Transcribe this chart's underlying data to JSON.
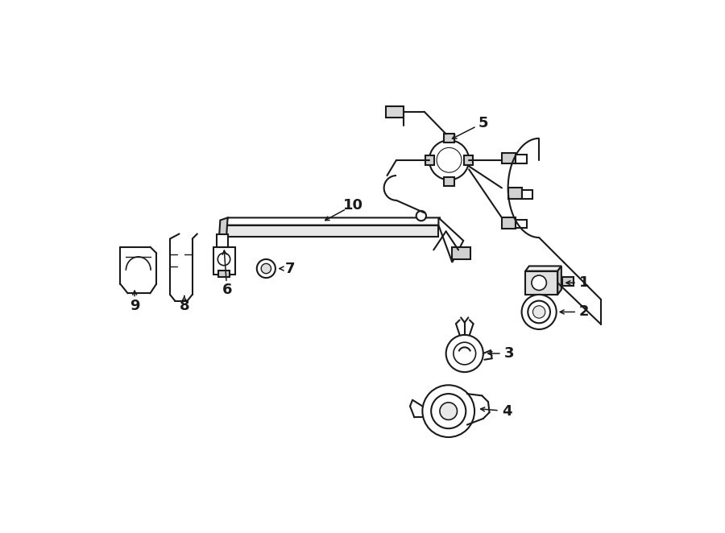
{
  "background_color": "#ffffff",
  "line_color": "#1a1a1a",
  "fig_width": 9.0,
  "fig_height": 6.62,
  "dpi": 100
}
